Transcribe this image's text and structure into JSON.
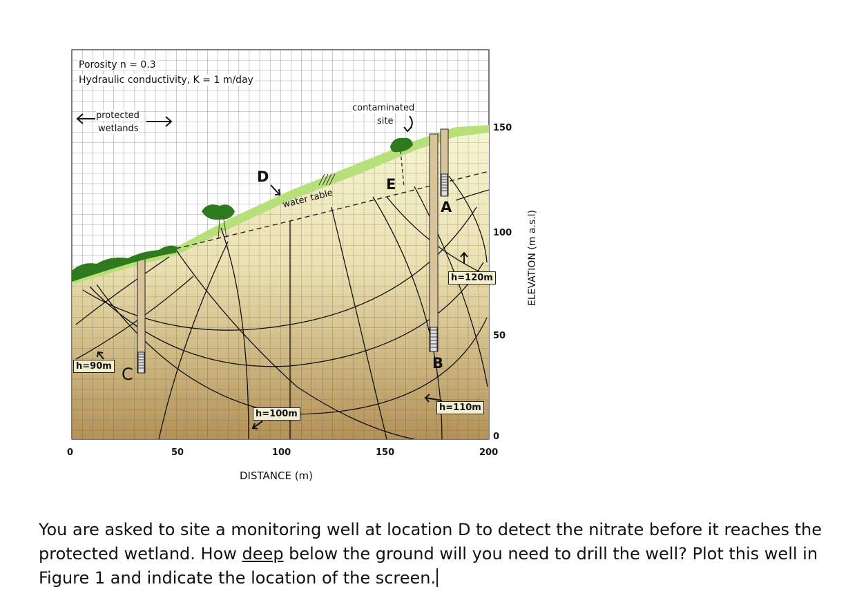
{
  "figure": {
    "properties": {
      "porosity": "Porosity n = 0.3",
      "conductivity": "Hydraulic conductivity, K = 1 m/day"
    },
    "wetlands_label": [
      "protected",
      "wetlands"
    ],
    "site_label": [
      "contaminated",
      "site"
    ],
    "water_table_label": "water table",
    "locations": {
      "A": "A",
      "B": "B",
      "C": "C",
      "D": "D",
      "E": "E"
    },
    "heads": {
      "h90": "h=90m",
      "h100": "h=100m",
      "h110": "h=110m",
      "h120": "h=120m"
    },
    "x_axis": {
      "label": "DISTANCE (m)",
      "ticks": [
        "0",
        "50",
        "100",
        "150",
        "200"
      ]
    },
    "y_axis": {
      "label": "ELEVATION (m a.s.l)",
      "ticks": [
        "150",
        "100",
        "50",
        "0"
      ]
    },
    "colors": {
      "soil_top": "#f6f3c6",
      "soil_bottom": "#b08a4a",
      "grass": "#b8e07a",
      "vegetation": "#2f7a1f"
    }
  },
  "question": {
    "before": "You are asked to site a monitoring well at location D to detect the nitrate before it reaches the protected wetland. How ",
    "emphasis": "deep",
    "after": " below the ground will you need to drill the well? Plot this well in Figure 1 and indicate the location of the screen."
  }
}
